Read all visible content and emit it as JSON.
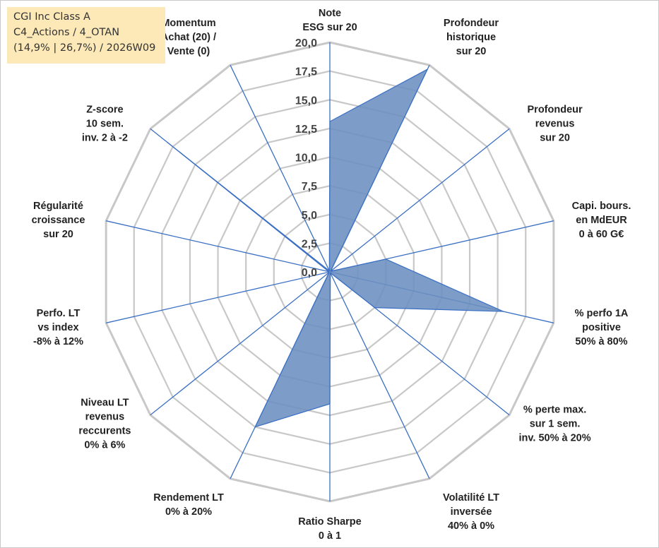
{
  "info_box": {
    "line1": "CGI Inc Class A",
    "line2": "C4_Actions / 4_OTAN",
    "line3": "(14,9% | 26,7%) / 2026W09"
  },
  "chart_data": {
    "type": "radar",
    "title": "",
    "rmin": 0,
    "rmax": 20,
    "ticks": [
      "0,0",
      "2,5",
      "5,0",
      "7,5",
      "10,0",
      "12,5",
      "15,0",
      "17,5",
      "20,0"
    ],
    "tick_values": [
      0,
      2.5,
      5,
      7.5,
      10,
      12.5,
      15,
      17.5,
      20
    ],
    "grid": true,
    "colors": {
      "series_fill": "#6b8fc0",
      "series_stroke": "#3a6fc4",
      "spoke": "#3a6fc4",
      "grid": "#c8c8c8"
    },
    "axes": [
      [
        "Note",
        "ESG sur 20"
      ],
      [
        "Profondeur",
        "historique",
        "sur 20"
      ],
      [
        "Profondeur",
        "revenus",
        "sur 20"
      ],
      [
        "Capi. bours.",
        "en MdEUR",
        "0 à 60 G€"
      ],
      [
        "% perfo 1A",
        "positive",
        "50% à 80%"
      ],
      [
        "% perte max.",
        "sur 1 sem.",
        "inv. 50% à 20%"
      ],
      [
        "Volatilité LT",
        "inversée",
        "40% à 0%"
      ],
      [
        "Ratio Sharpe",
        "0 à 1"
      ],
      [
        "Rendement LT",
        "0% à 20%"
      ],
      [
        "Niveau LT",
        "revenus",
        "reccurents",
        "0% à 6%"
      ],
      [
        "Perfo. LT",
        "vs index",
        "-8% à 12%"
      ],
      [
        "Régularité",
        "croissance",
        "sur 20"
      ],
      [
        "Z-score",
        "10 sem.",
        "inv. 2 à -2"
      ],
      [
        "Momentum",
        "Achat (20) /",
        "Vente (0)"
      ]
    ],
    "series": [
      {
        "values": [
          13.1,
          19.6,
          0.1,
          5.0,
          15.5,
          5.0,
          0.1,
          11.5,
          15.0,
          0.1,
          0.1,
          0.1,
          18.1,
          0.1
        ]
      }
    ]
  }
}
